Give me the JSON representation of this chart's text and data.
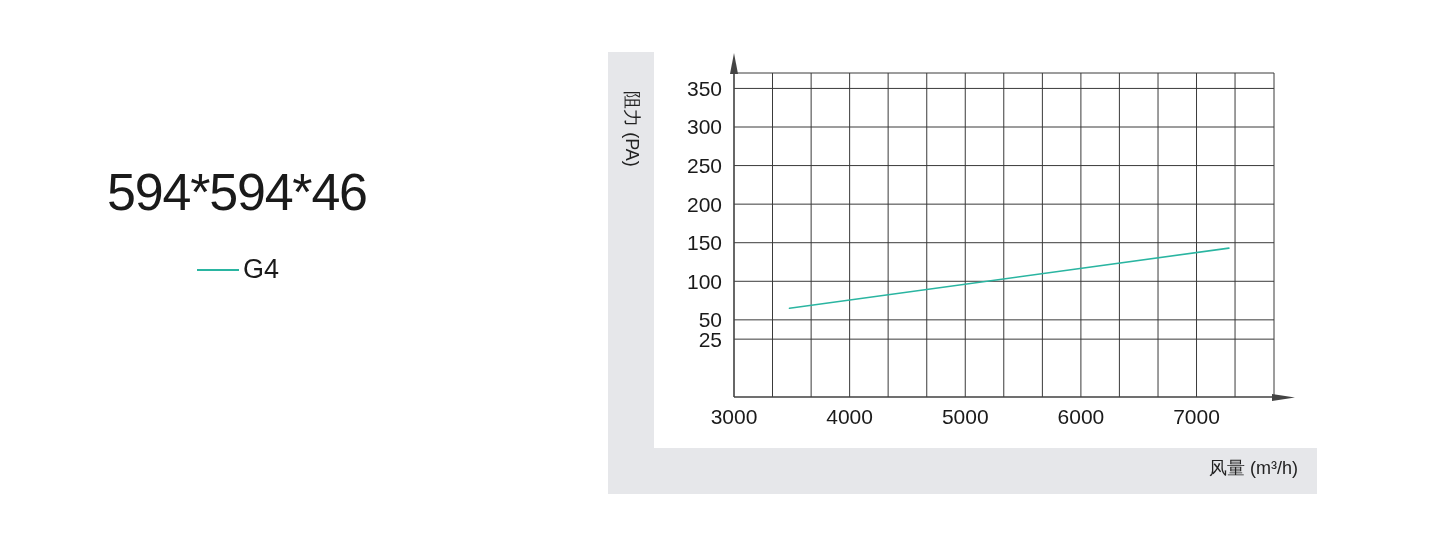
{
  "chart_data": {
    "type": "line",
    "title": "594*594*46",
    "xlabel": "风量 (m³/h)",
    "ylabel": "阻力 (PA)",
    "x": [
      3480,
      7280
    ],
    "series": [
      {
        "name": "G4",
        "color": "#2ab5a1",
        "values": [
          65,
          143
        ]
      }
    ],
    "xlim": [
      3000,
      7670
    ],
    "xticks": [
      3000,
      {
        "value": 3333,
        "label": null
      },
      {
        "value": 3667,
        "label": null
      },
      4000,
      {
        "value": 4333,
        "label": null
      },
      {
        "value": 4667,
        "label": null
      },
      5000,
      {
        "value": 5333,
        "label": null
      },
      {
        "value": 5667,
        "label": null
      },
      6000,
      {
        "value": 6333,
        "label": null
      },
      {
        "value": 6667,
        "label": null
      },
      7000,
      {
        "value": 7333,
        "label": null
      }
    ],
    "ylim": [
      -50,
      370
    ],
    "yticks": [
      25,
      50,
      100,
      150,
      200,
      250,
      300,
      350
    ],
    "grid": true,
    "legend": "left",
    "marker": "none",
    "line_style": "solid"
  }
}
